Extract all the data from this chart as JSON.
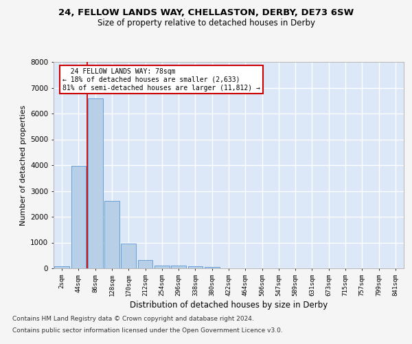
{
  "title": "24, FELLOW LANDS WAY, CHELLASTON, DERBY, DE73 6SW",
  "subtitle": "Size of property relative to detached houses in Derby",
  "xlabel": "Distribution of detached houses by size in Derby",
  "ylabel": "Number of detached properties",
  "bar_color": "#b8cfe8",
  "bar_edge_color": "#6a9fd8",
  "bg_color": "#dce8f8",
  "grid_color": "#ffffff",
  "fig_facecolor": "#f5f5f5",
  "categories": [
    "2sqm",
    "44sqm",
    "86sqm",
    "128sqm",
    "170sqm",
    "212sqm",
    "254sqm",
    "296sqm",
    "338sqm",
    "380sqm",
    "422sqm",
    "464sqm",
    "506sqm",
    "547sqm",
    "589sqm",
    "631sqm",
    "673sqm",
    "715sqm",
    "757sqm",
    "799sqm",
    "841sqm"
  ],
  "values": [
    80,
    3980,
    6600,
    2620,
    960,
    310,
    120,
    120,
    90,
    60,
    0,
    0,
    0,
    0,
    0,
    0,
    0,
    0,
    0,
    0,
    0
  ],
  "ylim": [
    0,
    8000
  ],
  "yticks": [
    0,
    1000,
    2000,
    3000,
    4000,
    5000,
    6000,
    7000,
    8000
  ],
  "red_line_x": 1.5,
  "property_label": "24 FELLOW LANDS WAY: 78sqm",
  "pct_smaller": "18%",
  "n_smaller": "2,633",
  "pct_larger_semi": "81%",
  "n_larger_semi": "11,812",
  "annotation_box_facecolor": "#ffffff",
  "annotation_border_color": "#cc0000",
  "footer_line1": "Contains HM Land Registry data © Crown copyright and database right 2024.",
  "footer_line2": "Contains public sector information licensed under the Open Government Licence v3.0."
}
